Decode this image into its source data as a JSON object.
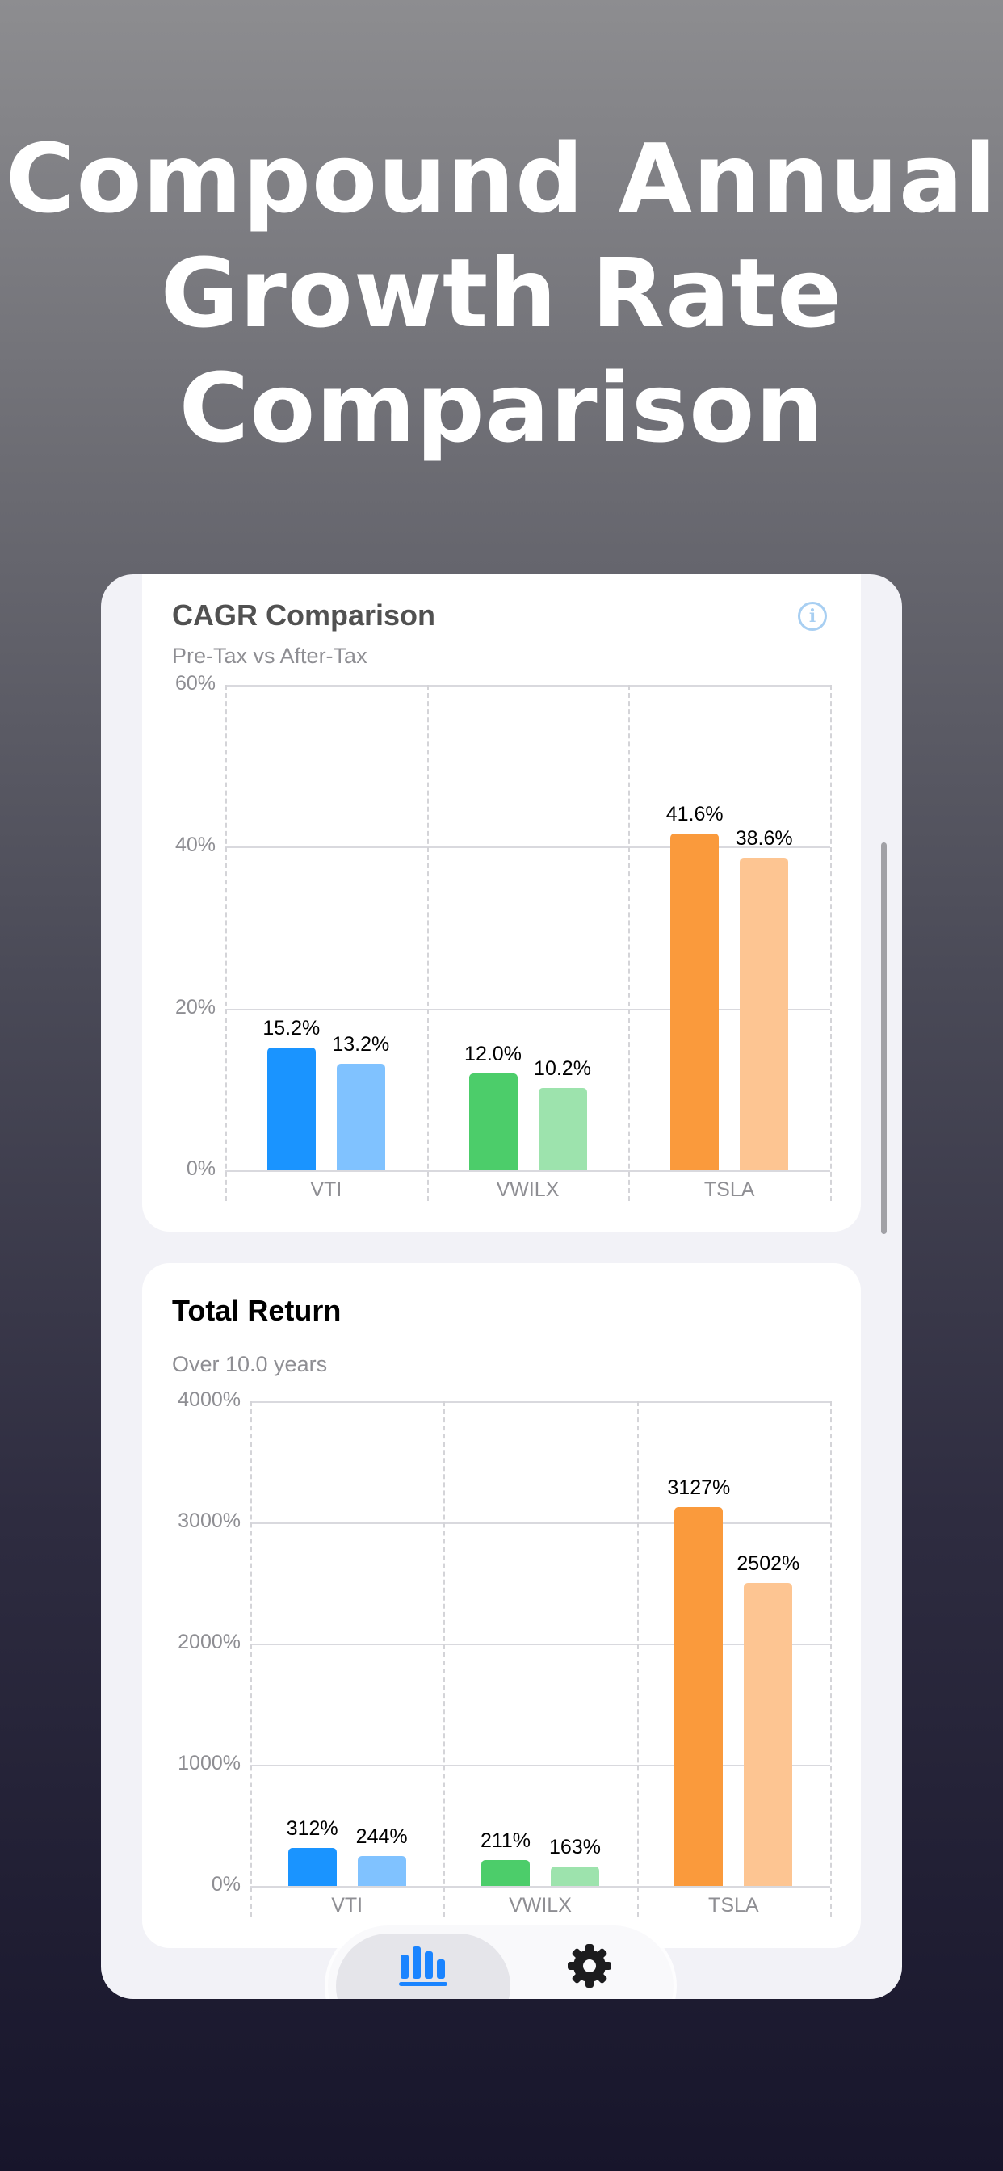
{
  "headline": {
    "lines": [
      "Compound Annual",
      "Growth Rate",
      "Comparison"
    ]
  },
  "cagr_card": {
    "title": "CAGR Comparison",
    "subtitle": "Pre-Tax vs After-Tax",
    "info_icon": "info-circle-icon",
    "y_ticks": [
      "60%",
      "40%",
      "20%",
      "0%"
    ],
    "categories": [
      "VTI",
      "VWILX",
      "TSLA"
    ],
    "bars": [
      {
        "label": "15.2%",
        "value": 15.2
      },
      {
        "label": "13.2%",
        "value": 13.2
      },
      {
        "label": "12.0%",
        "value": 12.0
      },
      {
        "label": "10.2%",
        "value": 10.2
      },
      {
        "label": "41.6%",
        "value": 41.6
      },
      {
        "label": "38.6%",
        "value": 38.6
      }
    ]
  },
  "total_return_card": {
    "title": "Total Return",
    "subtitle": "Over 10.0 years",
    "y_ticks": [
      "4000%",
      "3000%",
      "2000%",
      "1000%",
      "0%"
    ],
    "categories": [
      "VTI",
      "VWILX",
      "TSLA"
    ],
    "bars": [
      {
        "label": "312%",
        "value": 312
      },
      {
        "label": "244%",
        "value": 244
      },
      {
        "label": "211%",
        "value": 211
      },
      {
        "label": "163%",
        "value": 163
      },
      {
        "label": "3127%",
        "value": 3127
      },
      {
        "label": "2502%",
        "value": 2502
      }
    ]
  },
  "tab_bar": {
    "tabs": [
      {
        "name": "charts",
        "icon": "bar-chart-icon",
        "active": true
      },
      {
        "name": "settings",
        "icon": "gear-icon",
        "active": false
      }
    ]
  },
  "colors": {
    "vti_pre": "#1a94ff",
    "vti_post": "#80c2ff",
    "vwilx_pre": "#4ccd6a",
    "vwilx_post": "#9de3ad",
    "tsla_pre": "#fa9a3c",
    "tsla_post": "#fdc592",
    "tab_active": "#1a84ff"
  },
  "chart_data": [
    {
      "type": "bar",
      "title": "CAGR Comparison",
      "subtitle": "Pre-Tax vs After-Tax",
      "categories": [
        "VTI",
        "VWILX",
        "TSLA"
      ],
      "series": [
        {
          "name": "Pre-Tax",
          "values": [
            15.2,
            12.0,
            41.6
          ]
        },
        {
          "name": "After-Tax",
          "values": [
            13.2,
            10.2,
            38.6
          ]
        }
      ],
      "xlabel": "",
      "ylabel": "",
      "ylim": [
        0,
        60
      ],
      "yticks": [
        "0%",
        "20%",
        "40%",
        "60%"
      ],
      "grid": true,
      "legend": "none"
    },
    {
      "type": "bar",
      "title": "Total Return",
      "subtitle": "Over 10.0 years",
      "categories": [
        "VTI",
        "VWILX",
        "TSLA"
      ],
      "series": [
        {
          "name": "Pre-Tax",
          "values": [
            312,
            211,
            3127
          ]
        },
        {
          "name": "After-Tax",
          "values": [
            244,
            163,
            2502
          ]
        }
      ],
      "xlabel": "",
      "ylabel": "",
      "ylim": [
        0,
        4000
      ],
      "yticks": [
        "0%",
        "1000%",
        "2000%",
        "3000%",
        "4000%"
      ],
      "grid": true,
      "legend": "none"
    }
  ]
}
